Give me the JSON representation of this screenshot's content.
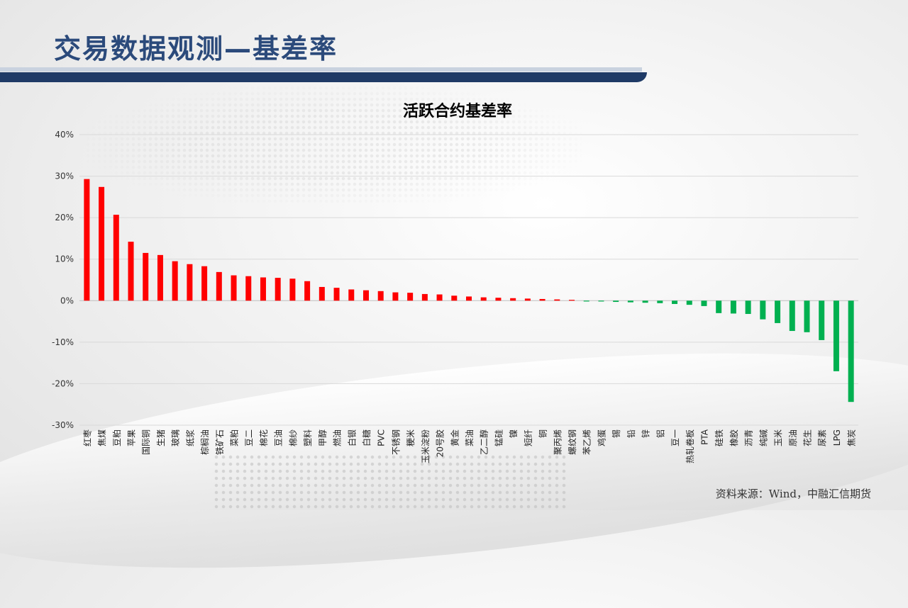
{
  "slide": {
    "title": "交易数据观测—基差率",
    "source": "资料来源：Wind，中融汇信期货"
  },
  "colors": {
    "positive": "#ff0000",
    "negative": "#00b050",
    "grid": "#d9d9d9",
    "title_blue": "#2b4a7b"
  },
  "chart_data": {
    "type": "bar",
    "title": "活跃合约基差率",
    "xlabel": "",
    "ylabel": "",
    "ylim": [
      -30,
      40
    ],
    "yticks": [
      -30,
      -20,
      -10,
      0,
      10,
      20,
      30,
      40
    ],
    "ytick_labels": [
      "-30%",
      "-20%",
      "-10%",
      "0%",
      "10%",
      "20%",
      "30%",
      "40%"
    ],
    "grid": true,
    "categories": [
      "红枣",
      "焦煤",
      "豆粕",
      "苹果",
      "国际铜",
      "生猪",
      "玻璃",
      "纸浆",
      "棕榈油",
      "铁矿石",
      "菜粕",
      "豆二",
      "棉花",
      "豆油",
      "棉纱",
      "塑料",
      "甲醇",
      "燃油",
      "白银",
      "白糖",
      "PVC",
      "不锈钢",
      "粳米",
      "玉米淀粉",
      "20号胶",
      "黄金",
      "菜油",
      "乙二醇",
      "锰硅",
      "镍",
      "短纤",
      "铜",
      "聚丙烯",
      "螺纹钢",
      "苯乙烯",
      "鸡蛋",
      "锡",
      "铅",
      "锌",
      "铝",
      "豆一",
      "热轧卷板",
      "PTA",
      "硅铁",
      "橡胶",
      "沥青",
      "纯碱",
      "玉米",
      "原油",
      "花生",
      "尿素",
      "LPG",
      "焦炭"
    ],
    "values": [
      29.3,
      27.4,
      20.7,
      14.2,
      11.5,
      11.0,
      9.5,
      8.8,
      8.3,
      6.9,
      6.1,
      5.9,
      5.6,
      5.5,
      5.3,
      4.7,
      3.3,
      3.1,
      2.7,
      2.5,
      2.3,
      2.0,
      1.9,
      1.6,
      1.5,
      1.2,
      1.0,
      0.8,
      0.7,
      0.6,
      0.5,
      0.4,
      0.3,
      0.2,
      -0.2,
      -0.2,
      -0.3,
      -0.4,
      -0.5,
      -0.6,
      -0.8,
      -1.0,
      -1.3,
      -3.0,
      -3.1,
      -3.2,
      -4.5,
      -5.4,
      -7.3,
      -7.6,
      -9.5,
      -17.0,
      -24.4
    ]
  }
}
